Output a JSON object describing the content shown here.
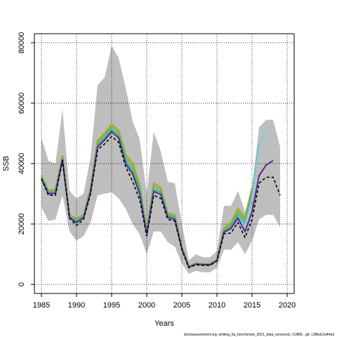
{
  "chart_data": {
    "type": "line",
    "title": "",
    "xlabel": "Years",
    "ylabel": "SSB",
    "xlim": [
      1984,
      2021
    ],
    "ylim": [
      -3000,
      83000
    ],
    "x_ticks": [
      1985,
      1990,
      1995,
      2000,
      2005,
      2010,
      2015,
      2020
    ],
    "y_ticks": [
      0,
      20000,
      40000,
      60000,
      80000
    ],
    "grid": true,
    "legend": "none",
    "band": {
      "color": "#bebebe",
      "x": [
        1985,
        1986,
        1987,
        1988,
        1989,
        1990,
        1991,
        1992,
        1993,
        1994,
        1995,
        1996,
        1997,
        1998,
        1999,
        2000,
        2001,
        2002,
        2003,
        2004,
        2005,
        2006,
        2007,
        2008,
        2009,
        2010,
        2011,
        2012,
        2013,
        2014,
        2015,
        2016,
        2017,
        2018,
        2019
      ],
      "upper": [
        48500,
        41000,
        40000,
        58000,
        31000,
        28500,
        30000,
        42000,
        66000,
        68500,
        79000,
        75000,
        65000,
        54000,
        48000,
        30000,
        50500,
        44000,
        34000,
        33500,
        20000,
        8000,
        10000,
        9000,
        9000,
        11000,
        26000,
        26000,
        31000,
        24000,
        32000,
        52000,
        54500,
        54500,
        45500
      ],
      "lower": [
        25500,
        21000,
        21500,
        29500,
        17500,
        14500,
        16000,
        20500,
        29500,
        30000,
        30500,
        28500,
        25000,
        20000,
        16500,
        10000,
        17500,
        17500,
        14000,
        12500,
        7000,
        3500,
        4500,
        4000,
        4000,
        5500,
        11500,
        11500,
        14000,
        10000,
        14500,
        21500,
        23000,
        23000,
        19000
      ]
    },
    "series": [
      {
        "color": "#a9a922",
        "width": 2.4,
        "dash": "",
        "x": [
          1985,
          1986,
          1987,
          1988,
          1989,
          1990,
          1991,
          1992,
          1993,
          1994,
          1995,
          1996,
          1997,
          1998,
          1999,
          2000,
          2001,
          2002,
          2003,
          2004,
          2005,
          2006,
          2007,
          2008,
          2009,
          2010,
          2011,
          2012,
          2013,
          2014,
          2015
        ],
        "values": [
          36000,
          31000,
          31500,
          42500,
          23000,
          21800,
          23000,
          32000,
          47500,
          50000,
          53000,
          51000,
          43000,
          40000,
          33000,
          17500,
          33500,
          32000,
          23500,
          23000,
          12500,
          6000,
          7000,
          6800,
          6800,
          8200,
          18500,
          20500,
          25000,
          22000,
          32000
        ]
      },
      {
        "color": "#6dbb4a",
        "width": 2.0,
        "dash": "",
        "x": [
          1985,
          1986,
          1987,
          1988,
          1989,
          1990,
          1991,
          1992,
          1993,
          1994,
          1995,
          1996,
          1997,
          1998,
          1999,
          2000,
          2001,
          2002,
          2003,
          2004,
          2005,
          2006,
          2007,
          2008,
          2009,
          2010,
          2011,
          2012,
          2013,
          2014,
          2015,
          2016
        ],
        "values": [
          35600,
          30600,
          31000,
          42000,
          22600,
          21400,
          22700,
          31500,
          46800,
          49300,
          52200,
          50200,
          42000,
          38800,
          32000,
          17200,
          32500,
          31200,
          23000,
          22500,
          12200,
          5900,
          6900,
          6700,
          6700,
          8100,
          18000,
          19800,
          24000,
          21000,
          30500,
          46000
        ]
      },
      {
        "color": "#2bb3a8",
        "width": 2.0,
        "dash": "",
        "x": [
          1985,
          1986,
          1987,
          1988,
          1989,
          1990,
          1991,
          1992,
          1993,
          1994,
          1995,
          1996,
          1997,
          1998,
          1999,
          2000,
          2001,
          2002,
          2003,
          2004,
          2005,
          2006,
          2007,
          2008,
          2009,
          2010,
          2011,
          2012,
          2013,
          2014,
          2015,
          2016
        ],
        "values": [
          35300,
          30300,
          30600,
          41600,
          22300,
          21000,
          22300,
          31000,
          46000,
          48500,
          51300,
          49300,
          41000,
          37500,
          31000,
          16900,
          31500,
          30500,
          22600,
          22000,
          12000,
          5800,
          6800,
          6600,
          6600,
          8000,
          17600,
          19200,
          23000,
          20000,
          29500,
          46500
        ]
      },
      {
        "color": "#7ccee0",
        "width": 2.0,
        "dash": "",
        "x": [
          2013,
          2014,
          2015,
          2016,
          2017
        ],
        "values": [
          22500,
          19500,
          28500,
          46000,
          51000
        ]
      },
      {
        "color": "#4b2d8c",
        "width": 2.0,
        "dash": "",
        "x": [
          1985,
          1986,
          1987,
          1988,
          1989,
          1990,
          1991,
          1992,
          1993,
          1994,
          1995,
          1996,
          1997,
          1998,
          1999,
          2000,
          2001,
          2002,
          2003,
          2004,
          2005,
          2006,
          2007,
          2008,
          2009,
          2010,
          2011,
          2012,
          2013,
          2014,
          2015,
          2016,
          2017,
          2018
        ],
        "values": [
          35000,
          30000,
          30200,
          41200,
          22000,
          20500,
          22000,
          30500,
          45500,
          47800,
          50500,
          48500,
          40000,
          36500,
          30000,
          16600,
          30800,
          29800,
          22200,
          21500,
          11800,
          5700,
          6700,
          6500,
          6500,
          7900,
          17300,
          18500,
          22000,
          17500,
          24000,
          36000,
          39500,
          41000
        ]
      },
      {
        "color": "#000000",
        "width": 1.6,
        "dash": "4,3",
        "x": [
          1985,
          1986,
          1987,
          1988,
          1989,
          1990,
          1991,
          1992,
          1993,
          1994,
          1995,
          1996,
          1997,
          1998,
          1999,
          2000,
          2001,
          2002,
          2003,
          2004,
          2005,
          2006,
          2007,
          2008,
          2009,
          2010,
          2011,
          2012,
          2013,
          2014,
          2015,
          2016,
          2017,
          2018,
          2019
        ],
        "values": [
          35000,
          29500,
          29500,
          41000,
          22000,
          19500,
          21500,
          30000,
          44500,
          46500,
          49000,
          47000,
          39000,
          34000,
          28000,
          16000,
          29500,
          28500,
          21500,
          21000,
          11500,
          5500,
          6500,
          6300,
          6300,
          7700,
          16800,
          17000,
          20500,
          15500,
          21500,
          33500,
          35500,
          35500,
          29500
        ]
      }
    ],
    "footer": "stockassessment.org,  whiting_6a_benchmark_2021_data_censored,  r13895 ,  git: c28bdc2a44ad"
  }
}
